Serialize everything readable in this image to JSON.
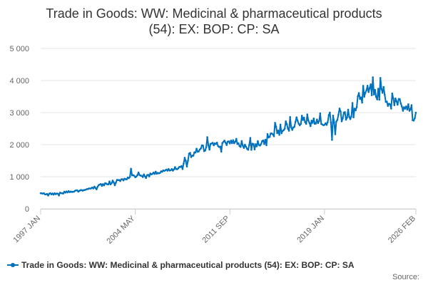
{
  "colors": {
    "series": "#0071BC",
    "grid": "#e6e6e6",
    "axis_text": "#666666",
    "title_text": "#333333"
  },
  "chart_data": {
    "type": "line",
    "title_line1": "Trade in Goods: WW: Medicinal & pharmaceutical products",
    "title_line2": "(54): EX: BOP: CP: SA",
    "xlabel": "",
    "ylabel": "",
    "x_range": [
      "1997 JAN",
      "2026 FEB"
    ],
    "ylim": [
      0,
      5000
    ],
    "yticks": [
      0,
      1000,
      2000,
      3000,
      4000,
      5000
    ],
    "ytick_labels": [
      "0",
      "1 000",
      "2 000",
      "3 000",
      "4 000",
      "5 000"
    ],
    "xticks": [
      {
        "label": "1997 JAN",
        "month_index": 0
      },
      {
        "label": "2004 MAY",
        "month_index": 88
      },
      {
        "label": "2011 SEP",
        "month_index": 176
      },
      {
        "label": "2019 JAN",
        "month_index": 264
      },
      {
        "label": "2026 FEB",
        "month_index": 349
      }
    ],
    "grid": true,
    "legend_position": "bottom",
    "series": [
      {
        "name": "Trade in Goods: WW: Medicinal & pharmaceutical products (54): EX: BOP: CP: SA",
        "frequency": "monthly",
        "start": "1997 JAN",
        "end": "2026 FEB",
        "anchors": [
          {
            "year": 1997.0,
            "value": 480
          },
          {
            "year": 1998.0,
            "value": 460
          },
          {
            "year": 1999.0,
            "value": 520
          },
          {
            "year": 2000.0,
            "value": 560
          },
          {
            "year": 2001.0,
            "value": 640
          },
          {
            "year": 2002.0,
            "value": 780
          },
          {
            "year": 2003.0,
            "value": 880
          },
          {
            "year": 2004.0,
            "value": 1000
          },
          {
            "year": 2005.0,
            "value": 1040
          },
          {
            "year": 2006.0,
            "value": 1120
          },
          {
            "year": 2007.0,
            "value": 1200
          },
          {
            "year": 2008.0,
            "value": 1320
          },
          {
            "year": 2008.5,
            "value": 1650
          },
          {
            "year": 2009.0,
            "value": 1800
          },
          {
            "year": 2010.0,
            "value": 1950
          },
          {
            "year": 2011.0,
            "value": 2000
          },
          {
            "year": 2012.0,
            "value": 2100
          },
          {
            "year": 2013.0,
            "value": 1950
          },
          {
            "year": 2014.0,
            "value": 1950
          },
          {
            "year": 2015.0,
            "value": 2450
          },
          {
            "year": 2016.0,
            "value": 2600
          },
          {
            "year": 2017.0,
            "value": 2750
          },
          {
            "year": 2018.0,
            "value": 2800
          },
          {
            "year": 2019.0,
            "value": 2800
          },
          {
            "year": 2020.0,
            "value": 2900
          },
          {
            "year": 2021.0,
            "value": 2950
          },
          {
            "year": 2022.0,
            "value": 3600
          },
          {
            "year": 2023.0,
            "value": 3700
          },
          {
            "year": 2024.0,
            "value": 3400
          },
          {
            "year": 2025.0,
            "value": 3300
          },
          {
            "year": 2026.08,
            "value": 3000
          }
        ]
      }
    ]
  },
  "legend": {
    "label": "Trade in Goods: WW: Medicinal & pharmaceutical products (54): EX: BOP: CP: SA"
  },
  "source": {
    "label": "Source:"
  }
}
